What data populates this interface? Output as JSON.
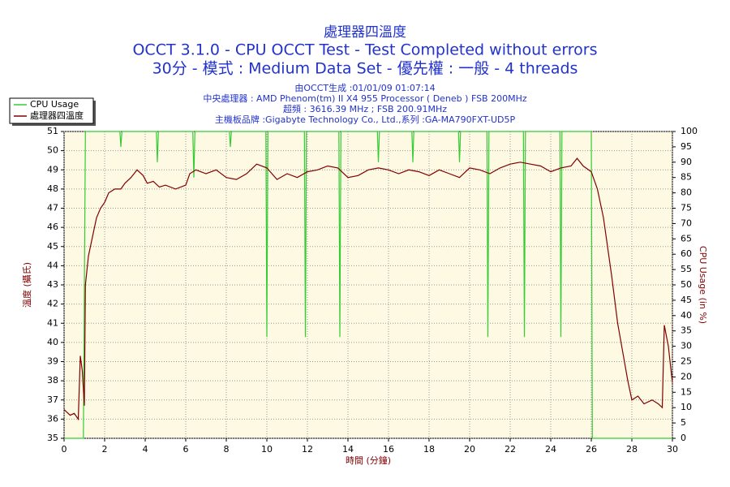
{
  "chart_data": {
    "type": "line",
    "titles": [
      "處理器四溫度",
      "OCCT 3.1.0 - CPU OCCT Test - Test Completed without errors",
      "30分 - 模式 : Medium Data Set - 優先權 : 一般 - 4 threads"
    ],
    "subtitles": [
      "由OCCT生成 :01/01/09 01:07:14",
      "中央處理器 : AMD Phenom(tm) II X4 955 Processor ( Deneb ) FSB 200MHz",
      "超頻 : 3616.39 MHz ; FSB 200.91MHz",
      "主機板品牌 :Gigabyte Technology Co., Ltd.,系列 :GA-MA790FXT-UD5P"
    ],
    "xlabel": "時間 (分鐘)",
    "ylabel": "溫度 (攝氏)",
    "y2label": "CPU Usage (in %)",
    "xlim": [
      0,
      30
    ],
    "xticks": [
      0,
      2,
      4,
      6,
      8,
      10,
      12,
      14,
      16,
      18,
      20,
      22,
      24,
      26,
      28,
      30
    ],
    "ylim": [
      35,
      51
    ],
    "yticks": [
      35,
      36,
      37,
      38,
      39,
      40,
      41,
      42,
      43,
      44,
      45,
      46,
      47,
      48,
      49,
      50,
      51
    ],
    "y2lim": [
      0,
      100
    ],
    "y2ticks": [
      0,
      5,
      10,
      15,
      20,
      25,
      30,
      35,
      40,
      45,
      50,
      55,
      60,
      65,
      70,
      75,
      80,
      85,
      90,
      95,
      100
    ],
    "grid": true,
    "legend": "upper left",
    "series": [
      {
        "name": "CPU Usage",
        "color": "#33cc33",
        "axis": "y2",
        "x": [
          0,
          0.95,
          1.05,
          2.75,
          2.8,
          2.85,
          4.55,
          4.6,
          4.65,
          6.35,
          6.4,
          6.45,
          8.15,
          8.2,
          8.25,
          9.95,
          10,
          10.05,
          11.85,
          11.9,
          11.95,
          13.55,
          13.6,
          13.65,
          15.45,
          15.5,
          15.55,
          17.15,
          17.2,
          17.25,
          19.45,
          19.5,
          19.55,
          20.85,
          20.9,
          20.95,
          22.65,
          22.7,
          22.75,
          24.45,
          24.5,
          24.55,
          26,
          26.05,
          30
        ],
        "values": [
          0,
          0,
          100,
          100,
          95,
          100,
          100,
          90,
          100,
          100,
          85,
          100,
          100,
          95,
          100,
          100,
          33,
          100,
          100,
          33,
          100,
          100,
          33,
          100,
          100,
          90,
          100,
          100,
          90,
          100,
          100,
          90,
          100,
          100,
          33,
          100,
          100,
          33,
          100,
          100,
          33,
          100,
          100,
          0,
          0
        ]
      },
      {
        "name": "處理器四溫度",
        "color": "#800000",
        "x": [
          0,
          0.3,
          0.5,
          0.7,
          0.8,
          0.9,
          1.0,
          1.05,
          1.2,
          1.4,
          1.6,
          1.8,
          2.0,
          2.2,
          2.5,
          2.8,
          3,
          3.3,
          3.6,
          3.9,
          4.1,
          4.4,
          4.7,
          5.0,
          5.5,
          6.0,
          6.2,
          6.5,
          7.0,
          7.5,
          8,
          8.5,
          9,
          9.5,
          10,
          10.5,
          11,
          11.5,
          12,
          12.5,
          13,
          13.5,
          14,
          14.5,
          15,
          15.5,
          16,
          16.5,
          17,
          17.5,
          18,
          18.5,
          19,
          19.5,
          20,
          20.5,
          21,
          21.5,
          22,
          22.5,
          23,
          23.5,
          24,
          24.5,
          25,
          25.3,
          25.6,
          26,
          26.3,
          26.6,
          27,
          27.3,
          27.6,
          27.8,
          28,
          28.3,
          28.6,
          29,
          29.3,
          29.5,
          29.6,
          29.8,
          30
        ],
        "values": [
          36.5,
          36.2,
          36.3,
          36,
          39.3,
          38.5,
          36.7,
          43,
          44.5,
          45.5,
          46.5,
          47,
          47.3,
          47.8,
          48,
          48,
          48.3,
          48.6,
          49,
          48.7,
          48.3,
          48.4,
          48.1,
          48.2,
          48,
          48.2,
          48.8,
          49,
          48.8,
          49,
          48.6,
          48.5,
          48.8,
          49.3,
          49.1,
          48.5,
          48.8,
          48.6,
          48.9,
          49,
          49.2,
          49.1,
          48.6,
          48.7,
          49,
          49.1,
          49,
          48.8,
          49,
          48.9,
          48.7,
          49,
          48.8,
          48.6,
          49.1,
          49,
          48.8,
          49.1,
          49.3,
          49.4,
          49.3,
          49.2,
          48.9,
          49.1,
          49.2,
          49.6,
          49.2,
          48.9,
          48,
          46.5,
          43.5,
          41,
          39.2,
          38,
          37,
          37.2,
          36.8,
          37,
          36.8,
          36.6,
          40.9,
          39.8,
          37.9
        ]
      }
    ]
  }
}
